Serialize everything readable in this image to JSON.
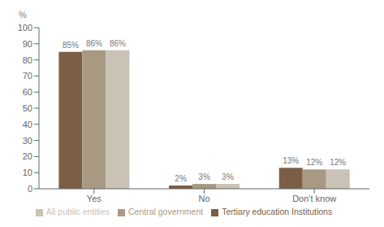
{
  "chart_data": {
    "type": "bar",
    "ylabel": "%",
    "categories": [
      "Yes",
      "No",
      "Don't know"
    ],
    "series": [
      {
        "name": "Tertiary education Institutions",
        "color": "#7B5E45",
        "values": [
          85,
          2,
          13
        ],
        "value_labels": [
          "85%",
          "2%",
          "13%"
        ]
      },
      {
        "name": "Central government",
        "color": "#A89A82",
        "values": [
          86,
          3,
          12
        ],
        "value_labels": [
          "86%",
          "3%",
          "12%"
        ]
      },
      {
        "name": "All public entities",
        "color": "#C9C2B5",
        "values": [
          86,
          3,
          12
        ],
        "value_labels": [
          "86%",
          "3%",
          "12%"
        ]
      }
    ],
    "ylim": [
      0,
      100
    ],
    "yticks": [
      0,
      10,
      20,
      30,
      40,
      50,
      60,
      70,
      80,
      90,
      100
    ],
    "data_labels": true,
    "legend": "bottom",
    "grid": false
  }
}
